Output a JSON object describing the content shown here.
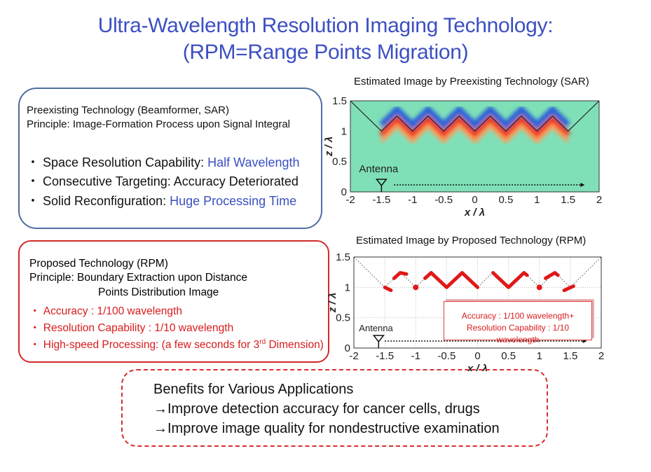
{
  "title": {
    "line1": "Ultra-Wavelength Resolution Imaging Technology:",
    "line2": "(RPM=Range Points Migration)"
  },
  "preexisting": {
    "heading": "Preexisting Technology (Beamformer, SAR)",
    "principle": "Principle: Image-Formation Process upon Signal Integral",
    "bullets": [
      {
        "label": "・ Space Resolution Capability: ",
        "value": "Half Wavelength"
      },
      {
        "label": "・ Consecutive Targeting: Accuracy Deteriorated",
        "value": ""
      },
      {
        "label": "・ Solid Reconfiguration: ",
        "value": "Huge Processing Time"
      }
    ]
  },
  "proposed": {
    "heading": "Proposed Technology (RPM)",
    "principle1": "Principle: Boundary Extraction upon Distance",
    "principle2": "Points Distribution Image",
    "bullets": [
      "・ Accuracy : 1/100 wavelength",
      "・ Resolution Capability : 1/10 wavelength",
      "・ High-speed Processing: (a few seconds for 3"
    ],
    "bullet3_sup": "rd",
    "bullet3_tail": " Dimension)"
  },
  "benefits": {
    "heading": "Benefits for Various Applications",
    "items": [
      "→Improve detection accuracy for cancer cells, drugs",
      "→Improve image quality for nondestructive examination"
    ]
  },
  "annotation": {
    "line1": "Accuracy : 1/100 wavelength+",
    "line2": "Resolution Capability : 1/10 wavelength"
  },
  "chart_data": [
    {
      "type": "heatmap",
      "title": "Estimated Image by Preexisting Technology (SAR)",
      "xlabel": "x / λ",
      "ylabel": "z / λ",
      "xlim": [
        -2,
        2
      ],
      "ylim": [
        0,
        1.5
      ],
      "xticks": [
        "-2",
        "-1.5",
        "-1",
        "-0.5",
        "0",
        "0.5",
        "1",
        "1.5",
        "2"
      ],
      "yticks": [
        "0",
        "0.5",
        "1",
        "1.5"
      ],
      "annotation": "Antenna",
      "true_boundary": {
        "x": [
          -2,
          -1.5,
          -1.25,
          -1,
          -0.75,
          -0.5,
          -0.25,
          0,
          0.25,
          0.5,
          0.75,
          1,
          1.25,
          1.5,
          2
        ],
        "y": [
          1.5,
          1,
          1.25,
          1,
          1.25,
          1,
          1.25,
          1,
          1.25,
          1,
          1.25,
          1,
          1.25,
          1,
          1.5
        ]
      },
      "antenna_x": -1.5,
      "scan_range": [
        -1.3,
        1.7
      ]
    },
    {
      "type": "scatter",
      "title": "Estimated Image by Proposed Technology (RPM)",
      "xlabel": "x / λ",
      "ylabel": "z / λ",
      "xlim": [
        -2,
        2
      ],
      "ylim": [
        0,
        1.5
      ],
      "xticks": [
        "-2",
        "-1.5",
        "-1",
        "-0.5",
        "0",
        "0.5",
        "1",
        "1.5",
        "2"
      ],
      "yticks": [
        "0",
        "0.5",
        "1",
        "1.5"
      ],
      "annotation": "Antenna",
      "true_boundary": {
        "x": [
          -2,
          -1.5,
          -1.25,
          -1,
          -0.75,
          -0.5,
          -0.25,
          0,
          0.25,
          0.5,
          0.75,
          1,
          1.25,
          1.5,
          2
        ],
        "y": [
          1.5,
          1,
          1.25,
          1,
          1.25,
          1,
          1.25,
          1,
          1.25,
          1,
          1.25,
          1,
          1.25,
          1,
          1.5
        ]
      },
      "estimated_segments": [
        [
          [
            -1.5,
            1
          ],
          [
            -1.4,
            0.95
          ]
        ],
        [
          [
            -1.35,
            1.15
          ],
          [
            -1.25,
            1.24
          ],
          [
            -1.15,
            1.22
          ]
        ],
        [
          [
            -1,
            1
          ]
        ],
        [
          [
            -0.85,
            1.15
          ],
          [
            -0.75,
            1.24
          ],
          [
            -0.5,
            1
          ],
          [
            -0.25,
            1.24
          ],
          [
            0,
            1
          ]
        ],
        [
          [
            0.25,
            1.24
          ],
          [
            0.5,
            1
          ],
          [
            0.75,
            1.24
          ],
          [
            0.8,
            1.2
          ]
        ],
        [
          [
            1,
            1
          ]
        ],
        [
          [
            1.1,
            1.15
          ],
          [
            1.25,
            1.24
          ],
          [
            1.3,
            1.2
          ]
        ],
        [
          [
            1.4,
            0.95
          ],
          [
            1.55,
            1.02
          ]
        ]
      ],
      "antenna_x": -1.6,
      "scan_range": [
        -1.5,
        1.7
      ]
    }
  ]
}
